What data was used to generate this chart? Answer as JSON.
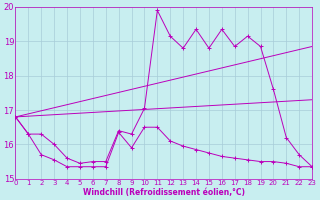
{
  "xlabel": "Windchill (Refroidissement éolien,°C)",
  "background_color": "#c8eef0",
  "grid_color": "#a8ccd8",
  "line_color": "#bb00bb",
  "xlim": [
    0,
    23
  ],
  "ylim": [
    15,
    20
  ],
  "yticks": [
    15,
    16,
    17,
    18,
    19,
    20
  ],
  "xticks": [
    0,
    1,
    2,
    3,
    4,
    5,
    6,
    7,
    8,
    9,
    10,
    11,
    12,
    13,
    14,
    15,
    16,
    17,
    18,
    19,
    20,
    21,
    22,
    23
  ],
  "series": {
    "line_top": {
      "x": [
        0,
        1,
        2,
        3,
        4,
        5,
        6,
        7,
        8,
        9,
        10,
        11,
        12,
        13,
        14,
        15,
        16,
        17,
        18,
        19,
        20,
        21,
        22,
        23
      ],
      "y": [
        16.8,
        16.3,
        16.3,
        16.0,
        15.6,
        15.45,
        15.5,
        15.5,
        16.4,
        16.3,
        17.05,
        19.9,
        19.15,
        18.8,
        19.35,
        18.8,
        19.35,
        18.85,
        19.15,
        18.85,
        17.6,
        16.2,
        15.7,
        15.35
      ]
    },
    "line_bottom": {
      "x": [
        0,
        1,
        2,
        3,
        4,
        5,
        6,
        7,
        8,
        9,
        10,
        11,
        12,
        13,
        14,
        15,
        16,
        17,
        18,
        19,
        20,
        21,
        22,
        23
      ],
      "y": [
        16.8,
        16.3,
        15.7,
        15.55,
        15.35,
        15.35,
        15.35,
        15.35,
        16.35,
        15.9,
        16.5,
        16.5,
        16.1,
        15.95,
        15.85,
        15.75,
        15.65,
        15.6,
        15.55,
        15.5,
        15.5,
        15.45,
        15.35,
        15.35
      ]
    },
    "trend_upper": {
      "x": [
        0,
        23
      ],
      "y": [
        16.8,
        18.85
      ]
    },
    "trend_lower": {
      "x": [
        0,
        23
      ],
      "y": [
        16.8,
        17.3
      ]
    }
  }
}
